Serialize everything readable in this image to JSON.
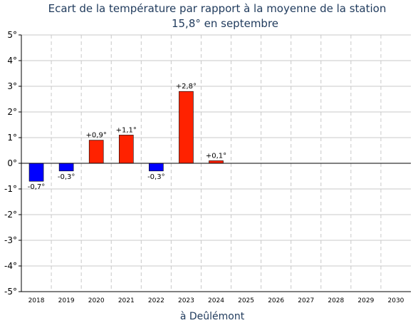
{
  "chart_data": {
    "type": "bar",
    "title": "Ecart de la température par rapport à la moyenne de la station",
    "subtitle": "15,8° en septembre",
    "xlabel": "à Deûlémont",
    "ylabel": "",
    "ylim": [
      -5,
      5
    ],
    "yticks": [
      5,
      4,
      3,
      2,
      1,
      0,
      -1,
      -2,
      -3,
      -4,
      -5
    ],
    "ytick_labels": [
      "5°",
      "4°",
      "3°",
      "2°",
      "1°",
      "0°",
      "-1°",
      "-2°",
      "-3°",
      "-4°",
      "-5°"
    ],
    "grid": true,
    "categories": [
      "2018",
      "2019",
      "2020",
      "2021",
      "2022",
      "2023",
      "2024",
      "2025",
      "2026",
      "2027",
      "2028",
      "2029",
      "2030"
    ],
    "values": [
      -0.7,
      -0.3,
      0.9,
      1.1,
      -0.3,
      2.8,
      0.1,
      null,
      null,
      null,
      null,
      null,
      null
    ],
    "data_labels": [
      "-0,7°",
      "-0,3°",
      "+0,9°",
      "+1,1°",
      "-0,3°",
      "+2,8°",
      "+0,1°",
      "",
      "",
      "",
      "",
      "",
      ""
    ],
    "colors": {
      "positive": "#ff2200",
      "negative": "#0000ff",
      "grid": "#c8c8c8",
      "axis": "#000000",
      "title": "#1f3a5c"
    }
  }
}
